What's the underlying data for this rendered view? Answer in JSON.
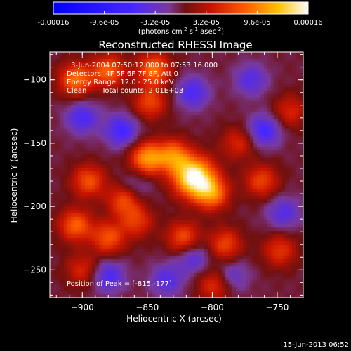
{
  "chart_data": {
    "type": "heatmap",
    "title": "Reconstructed RHESSI Image",
    "xlabel": "Heliocentric X (arcsec)",
    "ylabel": "Heliocentric Y (arcsec)",
    "xlim": [
      -925,
      -730
    ],
    "ylim": [
      -272,
      -78
    ],
    "x_ticks": [
      -900,
      -850,
      -800,
      -750
    ],
    "y_ticks": [
      -250,
      -200,
      -150,
      -100
    ],
    "colorbar": {
      "min": -0.00016,
      "max": 0.00016,
      "tick_values": [
        -0.00016,
        -9.6e-05,
        -3.2e-05,
        3.2e-05,
        9.6e-05,
        0.00016
      ],
      "tick_labels": [
        "-0.00016",
        "-9.6e-05",
        "-3.2e-05",
        "3.2e-05",
        "9.6e-05",
        "0.00016"
      ],
      "unit_label": "(photons cm",
      "unit_exp1": "-2",
      "unit_mid": " s",
      "unit_exp2": "-1",
      "unit_end": " asec",
      "unit_exp3": "-2",
      "unit_close": ")"
    },
    "annotations": {
      "time_range": "3-Jun-2004 07:50:12.000 to 07:53:16.000",
      "detectors": "Detectors: 4F 5F 6F 7F 8F, Att 0",
      "energy": "Energy Range: 12.0 - 25.0 keV",
      "method": "Clean",
      "counts": "Total counts: 2.01E+03",
      "peak": "Position of Peak = [-815,-177]"
    },
    "sources": [
      {
        "x": -814,
        "y": -177,
        "amp": 1.0
      },
      {
        "x": -830,
        "y": -160,
        "amp": 0.55
      },
      {
        "x": -850,
        "y": -162,
        "amp": 0.65
      },
      {
        "x": -800,
        "y": -190,
        "amp": 0.55
      },
      {
        "x": -868,
        "y": -195,
        "amp": 0.45
      },
      {
        "x": -895,
        "y": -180,
        "amp": 0.45
      },
      {
        "x": -905,
        "y": -215,
        "amp": 0.5
      },
      {
        "x": -880,
        "y": -225,
        "amp": 0.45
      },
      {
        "x": -858,
        "y": -212,
        "amp": 0.35
      },
      {
        "x": -905,
        "y": -100,
        "amp": 0.55
      },
      {
        "x": -880,
        "y": -93,
        "amp": 0.5
      },
      {
        "x": -845,
        "y": -92,
        "amp": 0.55
      },
      {
        "x": -848,
        "y": -118,
        "amp": 0.4
      },
      {
        "x": -822,
        "y": -225,
        "amp": 0.45
      },
      {
        "x": -790,
        "y": -230,
        "amp": 0.4
      },
      {
        "x": -762,
        "y": -180,
        "amp": 0.4
      },
      {
        "x": -748,
        "y": -235,
        "amp": 0.35
      },
      {
        "x": -798,
        "y": -262,
        "amp": 0.35
      },
      {
        "x": -900,
        "y": -250,
        "amp": 0.3
      },
      {
        "x": -740,
        "y": -125,
        "amp": 0.3
      },
      {
        "x": -780,
        "y": -150,
        "amp": 0.3
      },
      {
        "x": -870,
        "y": -140,
        "amp": -0.4
      },
      {
        "x": -900,
        "y": -130,
        "amp": -0.35
      },
      {
        "x": -815,
        "y": -110,
        "amp": -0.35
      },
      {
        "x": -760,
        "y": -140,
        "amp": -0.4
      },
      {
        "x": -745,
        "y": -205,
        "amp": -0.3
      },
      {
        "x": -880,
        "y": -255,
        "amp": -0.35
      },
      {
        "x": -835,
        "y": -258,
        "amp": -0.3
      },
      {
        "x": -785,
        "y": -255,
        "amp": -0.25
      },
      {
        "x": -815,
        "y": -240,
        "amp": -0.3
      },
      {
        "x": -860,
        "y": -185,
        "amp": -0.2
      },
      {
        "x": -770,
        "y": -100,
        "amp": -0.3
      }
    ]
  },
  "footer": {
    "timestamp": "15-Jun-2013 06:52"
  }
}
